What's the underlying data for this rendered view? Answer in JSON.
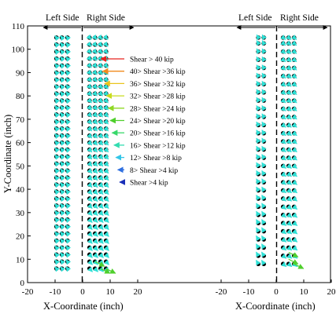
{
  "chart_data": {
    "type": "scatter",
    "ylabel": "Y-Coordinate (inch)",
    "ylim": [
      0,
      110
    ],
    "yticks": [
      "0",
      "10",
      "20",
      "30",
      "40",
      "50",
      "60",
      "70",
      "80",
      "90",
      "100",
      "110"
    ],
    "legend": {
      "placement": "center",
      "entries": [
        {
          "label": "Shear > 40 kip",
          "color": "#e8231f"
        },
        {
          "label": "40> Shear >36 kip",
          "color": "#f08a1c"
        },
        {
          "label": "36> Shear >32 kip",
          "color": "#e9c41c"
        },
        {
          "label": "32> Shear >28 kip",
          "color": "#c8dc1e"
        },
        {
          "label": "28> Shear >24 kip",
          "color": "#8fd824"
        },
        {
          "label": "24> Shear >20 kip",
          "color": "#4fcf2c"
        },
        {
          "label": "20> Shear >16 kip",
          "color": "#38d86a"
        },
        {
          "label": "16> Shear >12 kip",
          "color": "#33dcb0"
        },
        {
          "label": "12> Shear >8 kip",
          "color": "#34c6e8"
        },
        {
          "label": "8> Shear >4 kip",
          "color": "#2e6fe0"
        },
        {
          "label": "Shear >4 kip",
          "color": "#1a2fb8"
        }
      ]
    },
    "panels": [
      {
        "name": "left-panel",
        "xlabel": "X-Coordinate (inch)",
        "xlim": [
          -20,
          20
        ],
        "xticks": [
          "-20",
          "-10",
          "0",
          "10",
          "20"
        ],
        "side_labels": {
          "left": "Left Side",
          "right": "Right Side"
        },
        "bolt_columns_x": [
          -9.5,
          -7.5,
          -5.5,
          2.5,
          4.5,
          6.5,
          8.5
        ],
        "bolt_rows_y": [
          6,
          9,
          12,
          15,
          18,
          21,
          24,
          27,
          30,
          33,
          36,
          39,
          42,
          45,
          48,
          51,
          54,
          57,
          60,
          63,
          66,
          69,
          72,
          75,
          78,
          81,
          84,
          87,
          90,
          93,
          96,
          99,
          102,
          105
        ]
      },
      {
        "name": "right-panel",
        "xlabel": "X-Coordinate (inch)",
        "xlim": [
          -20,
          20
        ],
        "xticks": [
          "-20",
          "-10",
          "0",
          "10",
          "20"
        ],
        "side_labels": {
          "left": "Left Side",
          "right": "Right Side"
        },
        "bolt_columns_x": [
          -6.5,
          -4.5,
          2.5,
          4.5,
          6.5
        ],
        "bolt_rows_y": [
          8,
          11.5,
          15,
          18.5,
          22,
          25.5,
          29,
          32.5,
          36,
          39.5,
          43,
          46.5,
          50,
          53.5,
          57,
          60.5,
          64,
          67.5,
          71,
          74.5,
          78,
          81.5,
          85,
          88.5,
          92,
          95.5,
          99,
          102.5,
          105
        ]
      }
    ]
  }
}
